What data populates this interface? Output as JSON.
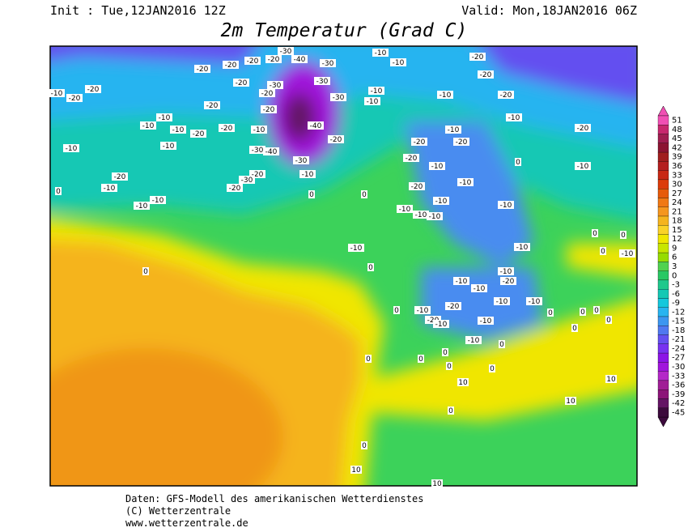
{
  "header": {
    "init": "Init : Tue,12JAN2016 12Z",
    "valid": "Valid: Mon,18JAN2016 06Z",
    "title": "2m Temperatur (Grad C)"
  },
  "legend": {
    "values": [
      51,
      48,
      45,
      42,
      39,
      36,
      33,
      30,
      27,
      24,
      21,
      18,
      15,
      12,
      9,
      6,
      3,
      0,
      -3,
      -6,
      -9,
      -12,
      -15,
      -18,
      -21,
      -24,
      -27,
      -30,
      -33,
      -36,
      -39,
      -42,
      -45
    ],
    "colors": [
      "#f050b4",
      "#c8286e",
      "#a01e50",
      "#8c1432",
      "#a01e1e",
      "#b41e1e",
      "#c82814",
      "#dc3c0a",
      "#e65a0a",
      "#f07814",
      "#f5961e",
      "#f5b41e",
      "#fad228",
      "#f0e600",
      "#c8e600",
      "#96dc00",
      "#50d250",
      "#28c864",
      "#1ec88c",
      "#14c8b4",
      "#14c8dc",
      "#28b4f0",
      "#3c96f0",
      "#5078f0",
      "#6450f0",
      "#7832f0",
      "#8c14e6",
      "#a014dc",
      "#b428c8",
      "#a01e96",
      "#8c1478",
      "#641464",
      "#3c0a3c"
    ]
  },
  "contour_labels": [
    -10,
    -20,
    -20,
    -10,
    -20,
    -10,
    0,
    -10,
    -10,
    -20,
    -20,
    -20,
    -20,
    -30,
    -40,
    -30,
    -20,
    -20,
    -10,
    -10,
    -10,
    -20,
    -20,
    -10,
    -10,
    -20,
    -20,
    -30,
    -40,
    -30,
    -40,
    -30,
    -20,
    -20,
    -30,
    -20,
    -10,
    -30,
    -30,
    -10,
    -10,
    -10,
    -10,
    -10,
    -20,
    -20,
    -20,
    -10,
    -20,
    -10,
    0,
    0,
    0,
    -20,
    -20,
    -10,
    -20,
    -10,
    -10,
    -20,
    -10,
    -10,
    -10,
    -10,
    -10,
    0,
    -10,
    -10,
    -10,
    -10,
    -20,
    -10,
    -10,
    -20,
    -10,
    0,
    -20,
    -10,
    -10,
    -10,
    0,
    0,
    0,
    -10,
    0,
    0,
    0,
    0,
    0,
    0,
    0,
    0,
    0,
    10,
    10,
    10,
    0,
    0,
    10,
    10,
    0,
    -10,
    0,
    0
  ],
  "footer": [
    "Daten: GFS-Modell des amerikanischen Wetterdienstes",
    "(C) Wetterzentrale",
    "www.wetterzentrale.de"
  ]
}
